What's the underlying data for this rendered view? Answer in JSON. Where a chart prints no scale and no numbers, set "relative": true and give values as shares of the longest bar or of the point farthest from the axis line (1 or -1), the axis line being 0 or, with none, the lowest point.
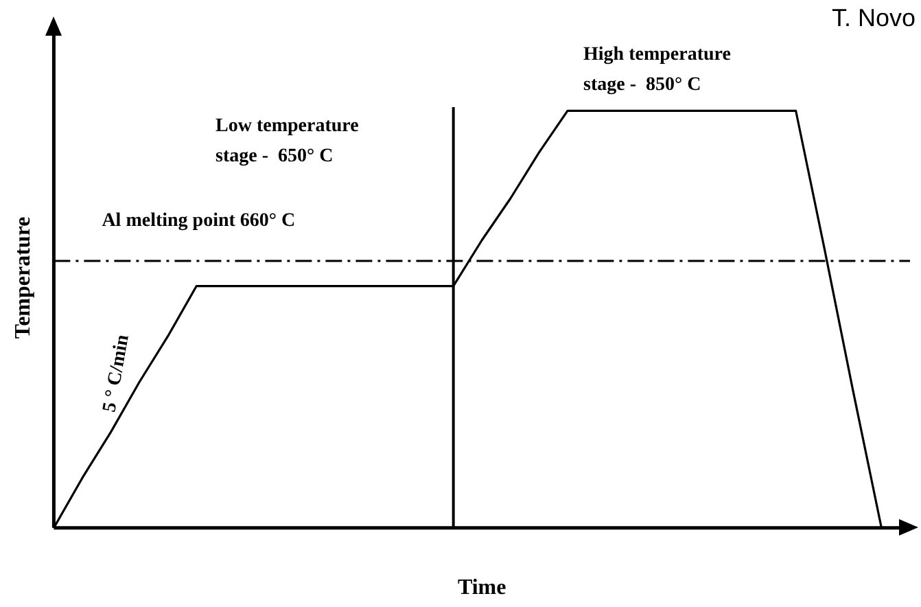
{
  "chart_data": {
    "type": "line",
    "relative": true,
    "xlabel": "Time",
    "ylabel": "Temperature",
    "categories": [
      null,
      null,
      null,
      null,
      null,
      null,
      null,
      null,
      null,
      null,
      null,
      null,
      null,
      null,
      null,
      null,
      null,
      null,
      null,
      null,
      null,
      null,
      null,
      null,
      null,
      null,
      null,
      null,
      null,
      null,
      null
    ],
    "series": [
      {
        "color": "#000000",
        "values": [
          0,
          0.12,
          0.23,
          0.35,
          0.46,
          0.58,
          0.58,
          0.58,
          0.58,
          0.58,
          0.58,
          0.58,
          0.58,
          0.58,
          0.58,
          0.69,
          0.79,
          0.9,
          1,
          1,
          1,
          1,
          1,
          1,
          1,
          1,
          1,
          0.67,
          0.33,
          0,
          null
        ]
      }
    ],
    "ref_lines": [
      {
        "axis": "y",
        "value": 0.64,
        "label": "Al melting point 660° C",
        "color": "#000000",
        "line_style": "dashed"
      }
    ],
    "annotations": [
      "T. Novo",
      "High temperature\nstage -  850° C",
      "Low temperature\nstage -  650° C",
      "5 ° C/min"
    ],
    "marker": "none",
    "legend": false
  }
}
